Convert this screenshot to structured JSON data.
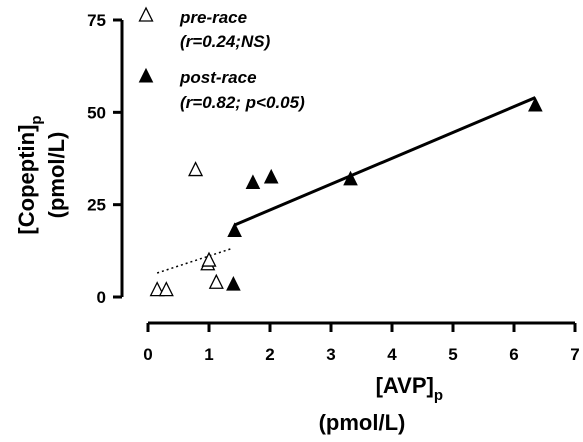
{
  "chart_data": {
    "type": "scatter",
    "xlabel": {
      "main": "[AVP]",
      "sub": "p",
      "unit": "(pmol/L)"
    },
    "ylabel": {
      "main": "[Copeptin]",
      "sub": "p",
      "unit": "(pmol/L)"
    },
    "xlim": [
      0,
      7
    ],
    "ylim": [
      0,
      75
    ],
    "xticks": [
      0,
      1,
      2,
      3,
      4,
      5,
      6,
      7
    ],
    "yticks": [
      0,
      25,
      50,
      75
    ],
    "grid": false,
    "legend_position": "top-left",
    "series": [
      {
        "name": "pre-race",
        "stat": "(r=0.24;NS)",
        "marker": "open-triangle",
        "color": "#000000",
        "points": [
          [
            0.15,
            2
          ],
          [
            0.3,
            2
          ],
          [
            0.78,
            34.5
          ],
          [
            0.98,
            9
          ],
          [
            1.0,
            10
          ],
          [
            1.12,
            4
          ]
        ],
        "fit": {
          "x": [
            0.15,
            1.35
          ],
          "y": [
            6.5,
            13
          ],
          "style": "dotted"
        }
      },
      {
        "name": "post-race",
        "stat": "(r=0.82; p<0.05)",
        "marker": "filled-triangle",
        "color": "#000000",
        "points": [
          [
            1.4,
            3.5
          ],
          [
            1.42,
            18
          ],
          [
            1.72,
            31
          ],
          [
            2.02,
            32.5
          ],
          [
            3.32,
            32
          ],
          [
            6.35,
            52
          ]
        ],
        "fit": {
          "x": [
            1.42,
            6.35
          ],
          "y": [
            19.5,
            54
          ],
          "style": "solid"
        }
      }
    ]
  }
}
